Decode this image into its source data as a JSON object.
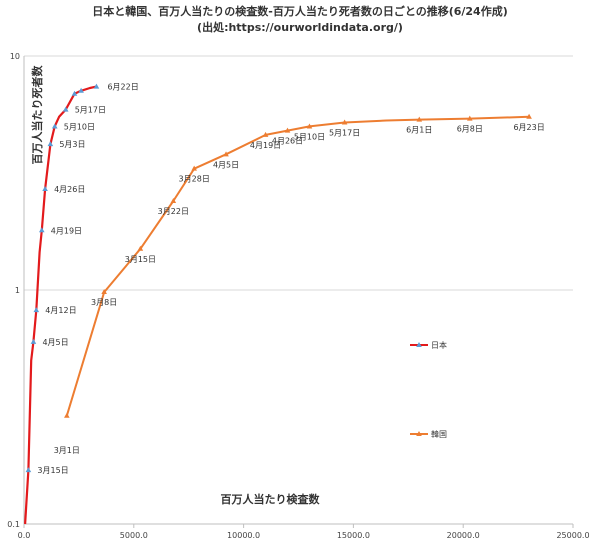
{
  "chart_data": {
    "type": "line",
    "title": "日本と韓国、百万人当たりの検査数-百万人当たり死者数の日ごとの推移(6/24作成)",
    "subtitle": "(出処:https://ourworldindata.org/)",
    "xlabel": "百万人当たり検査数",
    "ylabel": "百万人当たり死者数",
    "x_ticks": [
      "0.0",
      "5000.0",
      "10000.0",
      "15000.0",
      "20000.0",
      "25000.0"
    ],
    "y_ticks": [
      "0.1",
      "1",
      "10"
    ],
    "xlim": [
      0,
      25000
    ],
    "ylim": [
      0.1,
      10
    ],
    "y_scale": "log",
    "grid": "horizontal",
    "legend_position": "right",
    "series": [
      {
        "name": "日本",
        "color": "#e31a1c",
        "marker_color": "#5b9bd5",
        "line": [
          [
            50,
            0.1
          ],
          [
            200,
            0.17
          ],
          [
            330,
            0.5
          ],
          [
            430,
            0.6
          ],
          [
            560,
            0.82
          ],
          [
            710,
            1.45
          ],
          [
            810,
            1.8
          ],
          [
            960,
            2.7
          ],
          [
            1200,
            4.2
          ],
          [
            1400,
            5.0
          ],
          [
            1600,
            5.5
          ],
          [
            1900,
            5.9
          ],
          [
            2300,
            6.9
          ],
          [
            2600,
            7.1
          ],
          [
            3000,
            7.3
          ],
          [
            3300,
            7.4
          ]
        ],
        "points": [
          {
            "x": 200,
            "y": 0.17,
            "label": "3月15日"
          },
          {
            "x": 430,
            "y": 0.6,
            "label": "4月5日"
          },
          {
            "x": 560,
            "y": 0.82,
            "label": "4月12日"
          },
          {
            "x": 810,
            "y": 1.8,
            "label": "4月19日"
          },
          {
            "x": 960,
            "y": 2.7,
            "label": "4月26日"
          },
          {
            "x": 1200,
            "y": 4.2,
            "label": "5月3日"
          },
          {
            "x": 1400,
            "y": 5.0,
            "label": "5月10日"
          },
          {
            "x": 1900,
            "y": 5.9,
            "label": "5月17日"
          },
          {
            "x": 2300,
            "y": 6.9,
            "label": ""
          },
          {
            "x": 2600,
            "y": 7.1,
            "label": ""
          },
          {
            "x": 3300,
            "y": 7.4,
            "label": "6月22日"
          }
        ]
      },
      {
        "name": "韓国",
        "color": "#ed7d31",
        "marker_color": "#ed7d31",
        "line": [
          [
            1950,
            0.29
          ],
          [
            3650,
            0.98
          ],
          [
            5300,
            1.5
          ],
          [
            6800,
            2.4
          ],
          [
            7750,
            3.3
          ],
          [
            9200,
            3.8
          ],
          [
            11000,
            4.6
          ],
          [
            12000,
            4.8
          ],
          [
            13000,
            5.0
          ],
          [
            14600,
            5.2
          ],
          [
            16500,
            5.3
          ],
          [
            18000,
            5.35
          ],
          [
            20300,
            5.4
          ],
          [
            23000,
            5.5
          ]
        ],
        "points": [
          {
            "x": 1950,
            "y": 0.29,
            "label": "3月1日"
          },
          {
            "x": 3650,
            "y": 0.98,
            "label": "3月8日"
          },
          {
            "x": 5300,
            "y": 1.5,
            "label": "3月15日"
          },
          {
            "x": 6800,
            "y": 2.4,
            "label": "3月22日"
          },
          {
            "x": 7750,
            "y": 3.3,
            "label": "3月28日"
          },
          {
            "x": 9200,
            "y": 3.8,
            "label": "4月5日"
          },
          {
            "x": 11000,
            "y": 4.6,
            "label": "4月19日"
          },
          {
            "x": 12000,
            "y": 4.8,
            "label": "4月26日"
          },
          {
            "x": 13000,
            "y": 5.0,
            "label": "5月10日"
          },
          {
            "x": 14600,
            "y": 5.2,
            "label": "5月17日"
          },
          {
            "x": 18000,
            "y": 5.35,
            "label": "6月1日"
          },
          {
            "x": 20300,
            "y": 5.4,
            "label": "6月8日"
          },
          {
            "x": 23000,
            "y": 5.5,
            "label": "6月23日"
          }
        ]
      }
    ]
  }
}
